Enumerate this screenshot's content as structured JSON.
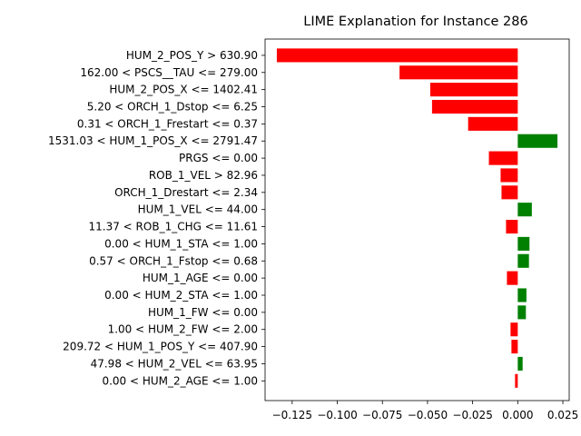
{
  "chart_data": {
    "type": "bar",
    "orientation": "horizontal",
    "title": "LIME Explanation for Instance 286",
    "xlabel": "",
    "ylabel": "",
    "xlim": [
      -0.14,
      0.0285
    ],
    "xticks": [
      -0.125,
      -0.1,
      -0.075,
      -0.05,
      -0.025,
      0.0,
      0.025
    ],
    "xtick_labels": [
      "−0.125",
      "−0.100",
      "−0.075",
      "−0.050",
      "−0.025",
      "0.000",
      "0.025"
    ],
    "grid": false,
    "positive_color": "#008000",
    "negative_color": "#ff0000",
    "categories": [
      "HUM_2_POS_Y > 630.90",
      "162.00 < PSCS__TAU <= 279.00",
      "HUM_2_POS_X <= 1402.41",
      "5.20 < ORCH_1_Dstop <= 6.25",
      "0.31 < ORCH_1_Frestart <= 0.37",
      "1531.03 < HUM_1_POS_X <= 2791.47",
      "PRGS <= 0.00",
      "ROB_1_VEL > 82.96",
      "ORCH_1_Drestart <= 2.34",
      "HUM_1_VEL <= 44.00",
      "11.37 < ROB_1_CHG <= 11.61",
      "0.00 < HUM_1_STA <= 1.00",
      "0.57 < ORCH_1_Fstop <= 0.68",
      "HUM_1_AGE <= 0.00",
      "0.00 < HUM_2_STA <= 1.00",
      "HUM_1_FW <= 0.00",
      "1.00 < HUM_2_FW <= 2.00",
      "209.72 < HUM_1_POS_Y <= 407.90",
      "47.98 < HUM_2_VEL <= 63.95",
      "0.00 < HUM_2_AGE <= 1.00"
    ],
    "values": [
      -0.1335,
      -0.0655,
      -0.0485,
      -0.0475,
      -0.0275,
      0.022,
      -0.016,
      -0.0095,
      -0.009,
      0.0078,
      -0.0065,
      0.0065,
      0.0062,
      -0.006,
      0.0048,
      0.0045,
      -0.004,
      -0.0035,
      0.0027,
      -0.0015
    ]
  }
}
